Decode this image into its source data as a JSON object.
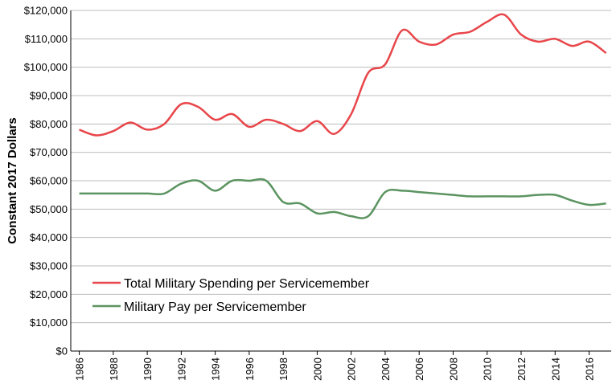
{
  "chart_data": {
    "type": "line",
    "y_label": "Constant 2017 Dollars",
    "x": [
      1986,
      1987,
      1988,
      1989,
      1990,
      1991,
      1992,
      1993,
      1994,
      1995,
      1996,
      1997,
      1998,
      1999,
      2000,
      2001,
      2002,
      2003,
      2004,
      2005,
      2006,
      2007,
      2008,
      2009,
      2010,
      2011,
      2012,
      2013,
      2014,
      2015,
      2016,
      2017
    ],
    "series": [
      {
        "name": "Total Military Spending per Servicemember",
        "color": "#e8464a",
        "values": [
          78000,
          76000,
          77500,
          80500,
          78000,
          80000,
          87000,
          86000,
          81500,
          83500,
          79000,
          81500,
          80000,
          77500,
          81000,
          76500,
          83500,
          98000,
          101000,
          113000,
          109000,
          108000,
          111500,
          112500,
          116000,
          118500,
          111500,
          109000,
          110000,
          107500,
          109000,
          105000
        ]
      },
      {
        "name": "Military Pay per Servicemember",
        "color": "#5b9460",
        "values": [
          55500,
          55500,
          55500,
          55500,
          55500,
          55500,
          59000,
          60000,
          56500,
          60000,
          60000,
          60000,
          52500,
          52000,
          48500,
          49000,
          47500,
          47500,
          56000,
          56500,
          56000,
          55500,
          55000,
          54500,
          54500,
          54500,
          54500,
          55000,
          55000,
          53000,
          51500,
          52000
        ]
      }
    ],
    "xlim": [
      1985.5,
      2017.3
    ],
    "xticks": [
      1986,
      1988,
      1990,
      1992,
      1994,
      1996,
      1998,
      2000,
      2002,
      2004,
      2006,
      2008,
      2010,
      2012,
      2014,
      2016
    ],
    "ylim": [
      0,
      120000
    ],
    "yticks": [
      {
        "value": 0,
        "label": "$0"
      },
      {
        "value": 10000,
        "label": "$10,000"
      },
      {
        "value": 20000,
        "label": "$20,000"
      },
      {
        "value": 30000,
        "label": "$30,000"
      },
      {
        "value": 40000,
        "label": "$40,000"
      },
      {
        "value": 50000,
        "label": "$50,000"
      },
      {
        "value": 60000,
        "label": "$60,000"
      },
      {
        "value": 70000,
        "label": "$70,000"
      },
      {
        "value": 80000,
        "label": "$80,000"
      },
      {
        "value": 90000,
        "label": "$90,000"
      },
      {
        "value": 100000,
        "label": "$100,000"
      },
      {
        "value": 110000,
        "label": "$110,000"
      },
      {
        "value": 120000,
        "label": "$120,000"
      }
    ],
    "grid": true
  }
}
